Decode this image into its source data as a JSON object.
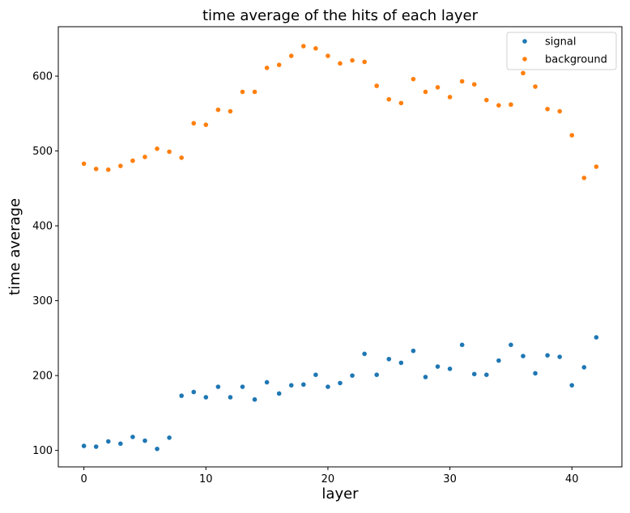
{
  "chart_data": {
    "type": "scatter",
    "title": "time average of the hits of each layer",
    "xlabel": "layer",
    "ylabel": "time average",
    "xlim": [
      -2.1,
      44.1
    ],
    "ylim": [
      78,
      666
    ],
    "xticks": [
      0,
      10,
      20,
      30,
      40
    ],
    "yticks": [
      100,
      200,
      300,
      400,
      500,
      600
    ],
    "grid": false,
    "legend_position": "upper-right",
    "series": [
      {
        "name": "signal",
        "color": "#1f77b4",
        "x": [
          0,
          1,
          2,
          3,
          4,
          5,
          6,
          7,
          8,
          9,
          10,
          11,
          12,
          13,
          14,
          15,
          16,
          17,
          18,
          19,
          20,
          21,
          22,
          23,
          24,
          25,
          26,
          27,
          28,
          29,
          30,
          31,
          32,
          33,
          34,
          35,
          36,
          37,
          38,
          39,
          40,
          41,
          42
        ],
        "y": [
          106,
          105,
          112,
          109,
          118,
          113,
          102,
          117,
          173,
          178,
          171,
          185,
          171,
          185,
          168,
          191,
          176,
          187,
          188,
          201,
          185,
          190,
          200,
          229,
          201,
          222,
          217,
          233,
          198,
          212,
          209,
          241,
          202,
          201,
          220,
          241,
          226,
          203,
          227,
          225,
          187,
          211,
          251
        ]
      },
      {
        "name": "background",
        "color": "#ff7f0e",
        "x": [
          0,
          1,
          2,
          3,
          4,
          5,
          6,
          7,
          8,
          9,
          10,
          11,
          12,
          13,
          14,
          15,
          16,
          17,
          18,
          19,
          20,
          21,
          22,
          23,
          24,
          25,
          26,
          27,
          28,
          29,
          30,
          31,
          32,
          33,
          34,
          35,
          36,
          37,
          38,
          39,
          40,
          41,
          42
        ],
        "y": [
          483,
          476,
          475,
          480,
          487,
          492,
          503,
          499,
          491,
          537,
          535,
          555,
          553,
          579,
          579,
          611,
          615,
          627,
          640,
          637,
          627,
          617,
          621,
          619,
          587,
          569,
          564,
          596,
          579,
          585,
          572,
          593,
          589,
          568,
          561,
          562,
          604,
          586,
          556,
          553,
          521,
          464,
          479
        ]
      }
    ]
  }
}
